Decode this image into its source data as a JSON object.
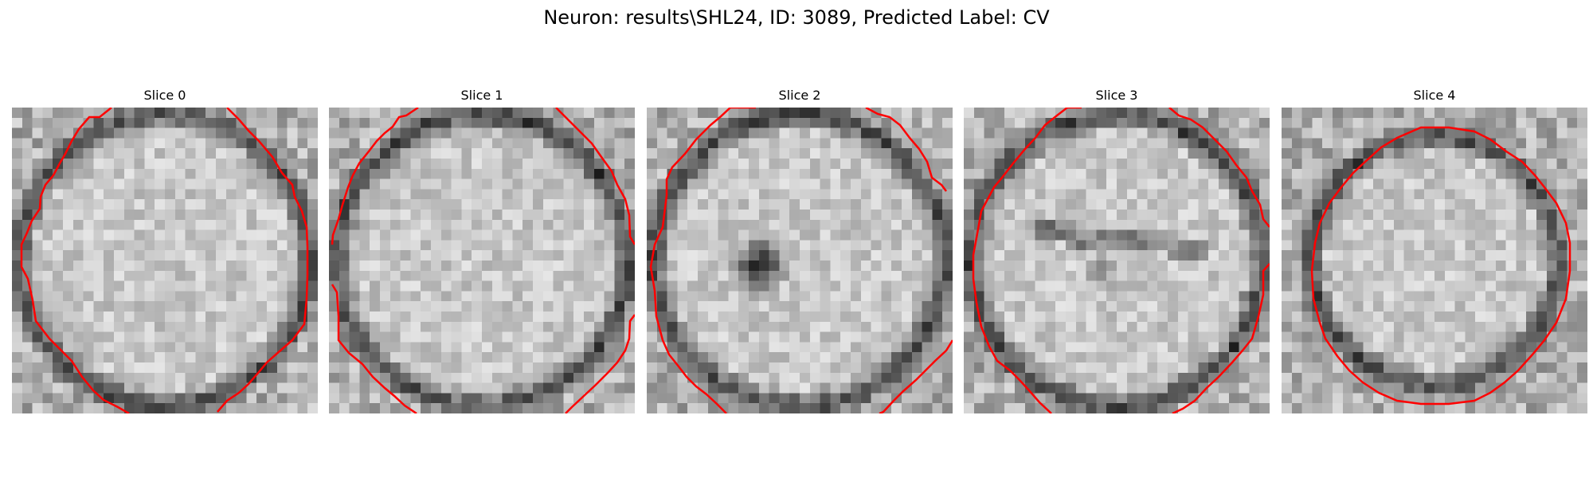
{
  "figure": {
    "title": "Neuron: results\\SHL24, ID: 3089, Predicted Label: CV",
    "contour_color": "#ff0000",
    "panels": [
      {
        "title": "Slice 0",
        "seed": 11,
        "variant": "normal"
      },
      {
        "title": "Slice 1",
        "seed": 23,
        "variant": "normal"
      },
      {
        "title": "Slice 2",
        "seed": 37,
        "variant": "dark-spot"
      },
      {
        "title": "Slice 3",
        "seed": 41,
        "variant": "streak"
      },
      {
        "title": "Slice 4",
        "seed": 53,
        "variant": "ring-dark"
      }
    ]
  }
}
